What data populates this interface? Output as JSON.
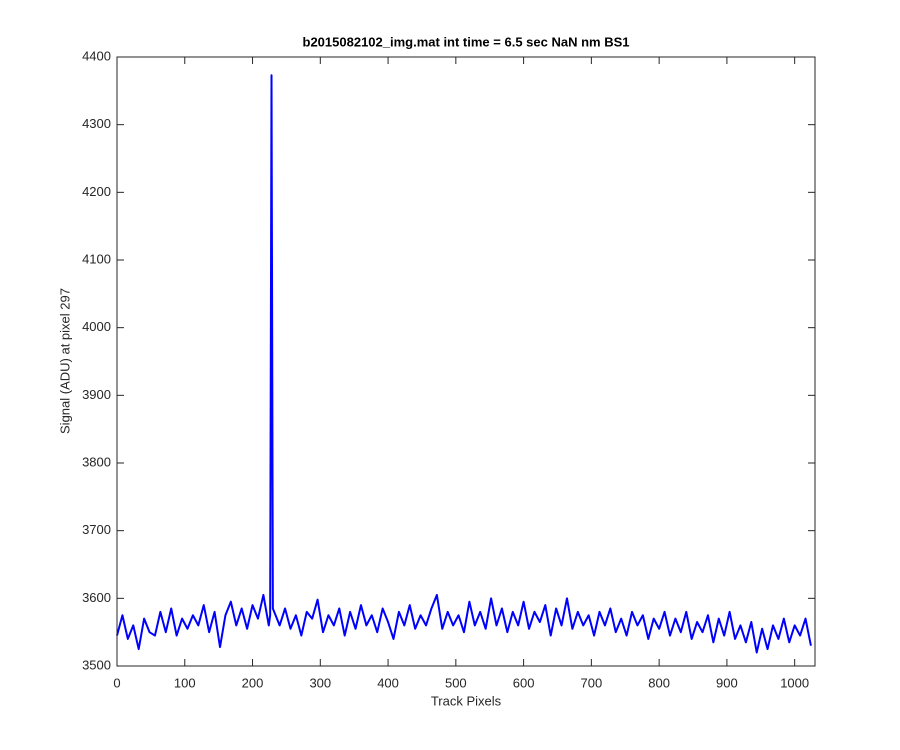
{
  "chart_data": {
    "type": "line",
    "title": "b2015082102_img.mat int time = 6.5 sec  NaN nm BS1",
    "x_label": "Track Pixels",
    "y_label": "Signal (ADU) at pixel 297",
    "xlim": [
      0,
      1030
    ],
    "ylim": [
      3500,
      4400
    ],
    "xticks": [
      0,
      100,
      200,
      300,
      400,
      500,
      600,
      700,
      800,
      900,
      1000
    ],
    "yticks": [
      3500,
      3600,
      3700,
      3800,
      3900,
      4000,
      4100,
      4200,
      4300,
      4400
    ],
    "x": [
      0,
      8,
      16,
      24,
      32,
      40,
      48,
      56,
      64,
      72,
      80,
      88,
      96,
      104,
      112,
      120,
      128,
      136,
      144,
      152,
      160,
      168,
      176,
      184,
      192,
      200,
      208,
      216,
      224,
      226,
      228,
      230,
      232,
      240,
      248,
      256,
      264,
      272,
      280,
      288,
      296,
      304,
      312,
      320,
      328,
      336,
      344,
      352,
      360,
      368,
      376,
      384,
      392,
      400,
      408,
      416,
      424,
      432,
      440,
      448,
      456,
      464,
      472,
      480,
      488,
      496,
      504,
      512,
      520,
      528,
      536,
      544,
      552,
      560,
      568,
      576,
      584,
      592,
      600,
      608,
      616,
      624,
      632,
      640,
      648,
      656,
      664,
      672,
      680,
      688,
      696,
      704,
      712,
      720,
      728,
      736,
      744,
      752,
      760,
      768,
      776,
      784,
      792,
      800,
      808,
      816,
      824,
      832,
      840,
      848,
      856,
      864,
      872,
      880,
      888,
      896,
      904,
      912,
      920,
      928,
      936,
      944,
      952,
      960,
      968,
      976,
      984,
      992,
      1000,
      1008,
      1016,
      1024
    ],
    "series": [
      {
        "name": "Signal",
        "color": "#0000ff",
        "values": [
          3545,
          3575,
          3540,
          3560,
          3525,
          3570,
          3550,
          3545,
          3580,
          3550,
          3585,
          3545,
          3570,
          3555,
          3575,
          3560,
          3590,
          3550,
          3580,
          3528,
          3575,
          3595,
          3560,
          3585,
          3555,
          3590,
          3570,
          3605,
          3560,
          3575,
          4373,
          3585,
          3580,
          3560,
          3585,
          3555,
          3575,
          3545,
          3580,
          3570,
          3598,
          3550,
          3575,
          3560,
          3585,
          3545,
          3580,
          3555,
          3590,
          3560,
          3575,
          3550,
          3585,
          3565,
          3540,
          3580,
          3560,
          3590,
          3555,
          3575,
          3560,
          3585,
          3605,
          3555,
          3580,
          3560,
          3575,
          3550,
          3595,
          3560,
          3580,
          3555,
          3600,
          3560,
          3585,
          3550,
          3580,
          3560,
          3595,
          3555,
          3580,
          3565,
          3590,
          3545,
          3585,
          3560,
          3600,
          3555,
          3580,
          3560,
          3575,
          3545,
          3580,
          3560,
          3585,
          3550,
          3570,
          3545,
          3580,
          3560,
          3575,
          3540,
          3570,
          3555,
          3580,
          3545,
          3570,
          3550,
          3580,
          3540,
          3565,
          3550,
          3575,
          3535,
          3570,
          3545,
          3580,
          3540,
          3560,
          3535,
          3565,
          3520,
          3555,
          3525,
          3560,
          3540,
          3570,
          3535,
          3560,
          3545,
          3570,
          3530
        ]
      }
    ]
  }
}
